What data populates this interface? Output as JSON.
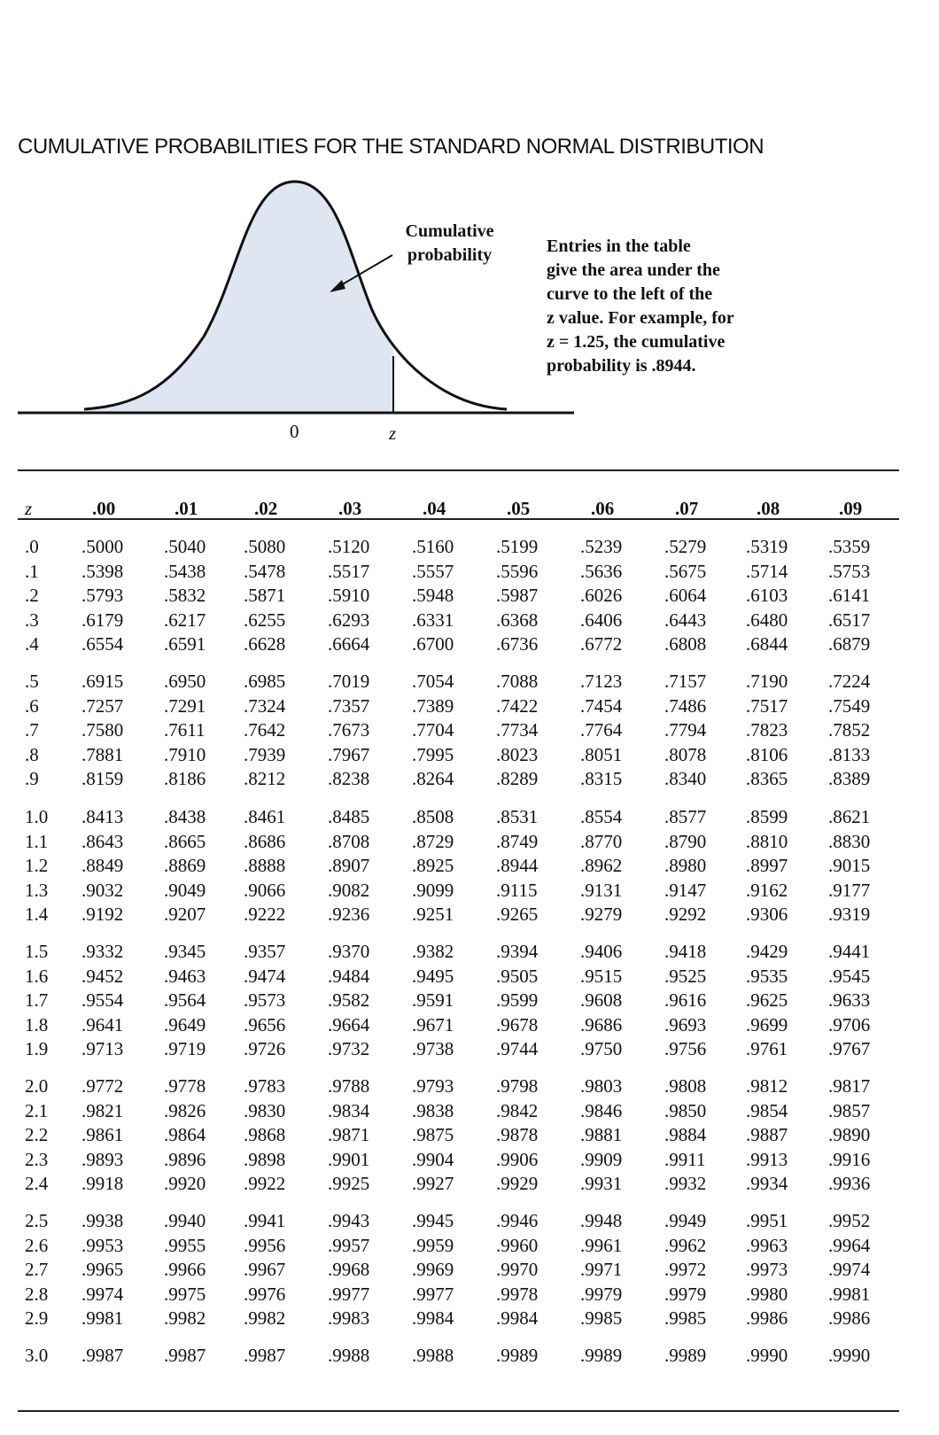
{
  "title": "CUMULATIVE PROBABILITIES FOR THE STANDARD NORMAL DISTRIBUTION",
  "figure": {
    "arrow_label_line1": "Cumulative",
    "arrow_label_line2": "probability",
    "note_lines": [
      "Entries in the table",
      "give the area under the",
      "curve to the left of the",
      "z value. For example, for",
      "z = 1.25, the cumulative",
      "probability is .8944."
    ],
    "axis_zero": "0",
    "axis_z": "z",
    "fill_color": "#dfe6f2"
  },
  "table": {
    "headers": [
      "z",
      ".00",
      ".01",
      ".02",
      ".03",
      ".04",
      ".05",
      ".06",
      ".07",
      ".08",
      ".09"
    ],
    "groups": [
      [
        [
          ".0",
          ".5000",
          ".5040",
          ".5080",
          ".5120",
          ".5160",
          ".5199",
          ".5239",
          ".5279",
          ".5319",
          ".5359"
        ],
        [
          ".1",
          ".5398",
          ".5438",
          ".5478",
          ".5517",
          ".5557",
          ".5596",
          ".5636",
          ".5675",
          ".5714",
          ".5753"
        ],
        [
          ".2",
          ".5793",
          ".5832",
          ".5871",
          ".5910",
          ".5948",
          ".5987",
          ".6026",
          ".6064",
          ".6103",
          ".6141"
        ],
        [
          ".3",
          ".6179",
          ".6217",
          ".6255",
          ".6293",
          ".6331",
          ".6368",
          ".6406",
          ".6443",
          ".6480",
          ".6517"
        ],
        [
          ".4",
          ".6554",
          ".6591",
          ".6628",
          ".6664",
          ".6700",
          ".6736",
          ".6772",
          ".6808",
          ".6844",
          ".6879"
        ]
      ],
      [
        [
          ".5",
          ".6915",
          ".6950",
          ".6985",
          ".7019",
          ".7054",
          ".7088",
          ".7123",
          ".7157",
          ".7190",
          ".7224"
        ],
        [
          ".6",
          ".7257",
          ".7291",
          ".7324",
          ".7357",
          ".7389",
          ".7422",
          ".7454",
          ".7486",
          ".7517",
          ".7549"
        ],
        [
          ".7",
          ".7580",
          ".7611",
          ".7642",
          ".7673",
          ".7704",
          ".7734",
          ".7764",
          ".7794",
          ".7823",
          ".7852"
        ],
        [
          ".8",
          ".7881",
          ".7910",
          ".7939",
          ".7967",
          ".7995",
          ".8023",
          ".8051",
          ".8078",
          ".8106",
          ".8133"
        ],
        [
          ".9",
          ".8159",
          ".8186",
          ".8212",
          ".8238",
          ".8264",
          ".8289",
          ".8315",
          ".8340",
          ".8365",
          ".8389"
        ]
      ],
      [
        [
          "1.0",
          ".8413",
          ".8438",
          ".8461",
          ".8485",
          ".8508",
          ".8531",
          ".8554",
          ".8577",
          ".8599",
          ".8621"
        ],
        [
          "1.1",
          ".8643",
          ".8665",
          ".8686",
          ".8708",
          ".8729",
          ".8749",
          ".8770",
          ".8790",
          ".8810",
          ".8830"
        ],
        [
          "1.2",
          ".8849",
          ".8869",
          ".8888",
          ".8907",
          ".8925",
          ".8944",
          ".8962",
          ".8980",
          ".8997",
          ".9015"
        ],
        [
          "1.3",
          ".9032",
          ".9049",
          ".9066",
          ".9082",
          ".9099",
          ".9115",
          ".9131",
          ".9147",
          ".9162",
          ".9177"
        ],
        [
          "1.4",
          ".9192",
          ".9207",
          ".9222",
          ".9236",
          ".9251",
          ".9265",
          ".9279",
          ".9292",
          ".9306",
          ".9319"
        ]
      ],
      [
        [
          "1.5",
          ".9332",
          ".9345",
          ".9357",
          ".9370",
          ".9382",
          ".9394",
          ".9406",
          ".9418",
          ".9429",
          ".9441"
        ],
        [
          "1.6",
          ".9452",
          ".9463",
          ".9474",
          ".9484",
          ".9495",
          ".9505",
          ".9515",
          ".9525",
          ".9535",
          ".9545"
        ],
        [
          "1.7",
          ".9554",
          ".9564",
          ".9573",
          ".9582",
          ".9591",
          ".9599",
          ".9608",
          ".9616",
          ".9625",
          ".9633"
        ],
        [
          "1.8",
          ".9641",
          ".9649",
          ".9656",
          ".9664",
          ".9671",
          ".9678",
          ".9686",
          ".9693",
          ".9699",
          ".9706"
        ],
        [
          "1.9",
          ".9713",
          ".9719",
          ".9726",
          ".9732",
          ".9738",
          ".9744",
          ".9750",
          ".9756",
          ".9761",
          ".9767"
        ]
      ],
      [
        [
          "2.0",
          ".9772",
          ".9778",
          ".9783",
          ".9788",
          ".9793",
          ".9798",
          ".9803",
          ".9808",
          ".9812",
          ".9817"
        ],
        [
          "2.1",
          ".9821",
          ".9826",
          ".9830",
          ".9834",
          ".9838",
          ".9842",
          ".9846",
          ".9850",
          ".9854",
          ".9857"
        ],
        [
          "2.2",
          ".9861",
          ".9864",
          ".9868",
          ".9871",
          ".9875",
          ".9878",
          ".9881",
          ".9884",
          ".9887",
          ".9890"
        ],
        [
          "2.3",
          ".9893",
          ".9896",
          ".9898",
          ".9901",
          ".9904",
          ".9906",
          ".9909",
          ".9911",
          ".9913",
          ".9916"
        ],
        [
          "2.4",
          ".9918",
          ".9920",
          ".9922",
          ".9925",
          ".9927",
          ".9929",
          ".9931",
          ".9932",
          ".9934",
          ".9936"
        ]
      ],
      [
        [
          "2.5",
          ".9938",
          ".9940",
          ".9941",
          ".9943",
          ".9945",
          ".9946",
          ".9948",
          ".9949",
          ".9951",
          ".9952"
        ],
        [
          "2.6",
          ".9953",
          ".9955",
          ".9956",
          ".9957",
          ".9959",
          ".9960",
          ".9961",
          ".9962",
          ".9963",
          ".9964"
        ],
        [
          "2.7",
          ".9965",
          ".9966",
          ".9967",
          ".9968",
          ".9969",
          ".9970",
          ".9971",
          ".9972",
          ".9973",
          ".9974"
        ],
        [
          "2.8",
          ".9974",
          ".9975",
          ".9976",
          ".9977",
          ".9977",
          ".9978",
          ".9979",
          ".9979",
          ".9980",
          ".9981"
        ],
        [
          "2.9",
          ".9981",
          ".9982",
          ".9982",
          ".9983",
          ".9984",
          ".9984",
          ".9985",
          ".9985",
          ".9986",
          ".9986"
        ]
      ],
      [
        [
          "3.0",
          ".9987",
          ".9987",
          ".9987",
          ".9988",
          ".9988",
          ".9989",
          ".9989",
          ".9989",
          ".9990",
          ".9990"
        ]
      ]
    ]
  }
}
